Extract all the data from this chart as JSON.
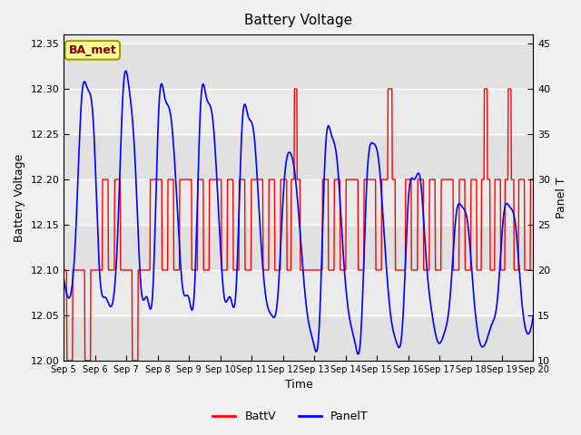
{
  "title": "Battery Voltage",
  "xlabel": "Time",
  "ylabel_left": "Battery Voltage",
  "ylabel_right": "Panel T",
  "legend_label_1": "BattV",
  "legend_label_2": "PanelT",
  "annotation_text": "BA_met",
  "ylim_left": [
    12.0,
    12.36
  ],
  "ylim_right": [
    10,
    46
  ],
  "yticks_left": [
    12.0,
    12.05,
    12.1,
    12.15,
    12.2,
    12.25,
    12.3,
    12.35
  ],
  "yticks_right": [
    10,
    15,
    20,
    25,
    30,
    35,
    40,
    45
  ],
  "xtick_labels": [
    "Sep 5",
    "Sep 6",
    "Sep 7",
    "Sep 8",
    "Sep 9",
    "Sep 10",
    "Sep 11",
    "Sep 12",
    "Sep 13",
    "Sep 14",
    "Sep 15",
    "Sep 16",
    "Sep 17",
    "Sep 18",
    "Sep 19",
    "Sep 20"
  ],
  "bg_color": "#f0f0f0",
  "plot_bg_light": "#e8e8e8",
  "plot_bg_dark": "#d0d0d0",
  "batt_color": "#ff0000",
  "panel_color": "#0000ff",
  "annotation_bg": "#ffff99",
  "annotation_border": "#cccc00",
  "annotation_text_color": "#880000",
  "batt_v": [
    12.1,
    12.0,
    12.1,
    12.1,
    12.0,
    12.1,
    12.1,
    12.2,
    12.1,
    12.2,
    12.1,
    12.1,
    12.0,
    12.1,
    12.1,
    12.2,
    12.2,
    12.1,
    12.2,
    12.1,
    12.2,
    12.2,
    12.1,
    12.2,
    12.1,
    12.2,
    12.2,
    12.1,
    12.2,
    12.1,
    12.2,
    12.1,
    12.2,
    12.2,
    12.1,
    12.2,
    12.1,
    12.2,
    12.1,
    12.3,
    12.1,
    12.1,
    12.1,
    12.1,
    12.2,
    12.1,
    12.2,
    12.1,
    12.2,
    12.2,
    12.1,
    12.2,
    12.2,
    12.1,
    12.2,
    12.3,
    12.1,
    12.1,
    12.2,
    12.1,
    12.2,
    12.1,
    12.2,
    12.1,
    12.2,
    12.2,
    12.1,
    12.2,
    12.1,
    12.2,
    12.1,
    12.3,
    12.1,
    12.2,
    12.1,
    12.3,
    12.1,
    12.2,
    12.1,
    12.2
  ],
  "panel_t": [
    19,
    17,
    24,
    39,
    40,
    36,
    20,
    17,
    16,
    23,
    40,
    40,
    32,
    18,
    17,
    18,
    38,
    39,
    37,
    28,
    18,
    17,
    18,
    38,
    39,
    37,
    27,
    17,
    17,
    18,
    36,
    37,
    35,
    25,
    17,
    15,
    17,
    29,
    33,
    30,
    22,
    15,
    12,
    14,
    33,
    35,
    32,
    22,
    15,
    12,
    13,
    30,
    34,
    32,
    23,
    15,
    12,
    14,
    28,
    30,
    30,
    21,
    15,
    12,
    13,
    17,
    26,
    27,
    25,
    17,
    12,
    12,
    14,
    17,
    26,
    27,
    25,
    17,
    13,
    15
  ]
}
